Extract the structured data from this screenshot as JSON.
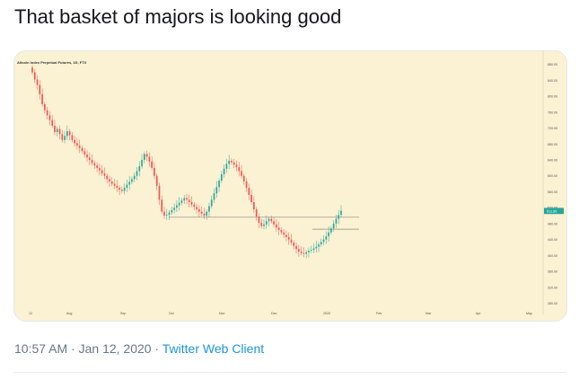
{
  "tweet": {
    "text": "That basket of majors is looking good",
    "time": "10:57 AM",
    "separator1": " · ",
    "date": "Jan 12, 2020",
    "separator2": " · ",
    "client": "Twitter Web Client"
  },
  "chart_data": {
    "type": "candlestick",
    "title": "Altcoin Index Perpetual Futures, 1D, FTX",
    "xlabel": "",
    "ylabel": "",
    "x_ticks": [
      "12",
      "Aug",
      "Sep",
      "Oct",
      "Nov",
      "Dec",
      "2020",
      "Feb",
      "Mar",
      "Apr",
      "May"
    ],
    "y_ticks": [
      280,
      320,
      360,
      400,
      440,
      480,
      520,
      560,
      600,
      640,
      680,
      720,
      760,
      800,
      840,
      880
    ],
    "ylim": [
      270,
      895
    ],
    "last_price_label": "511.85",
    "colors": {
      "background": "#fbf1d3",
      "up": "#26a69a",
      "down": "#ef5350",
      "level_line": "#8a8a8a",
      "price_badge": "#26a69a"
    },
    "horizontal_levels": [
      {
        "price": 496,
        "x_start": "Oct 1",
        "x_end": "Jan 14"
      },
      {
        "price": 466,
        "x_start": "Nov 20",
        "x_end": "Jan 14"
      }
    ],
    "close_series": [
      860,
      842,
      828,
      805,
      780,
      765,
      752,
      740,
      726,
      710,
      718,
      705,
      690,
      700,
      712,
      702,
      690,
      682,
      676,
      670,
      662,
      654,
      646,
      640,
      632,
      626,
      620,
      614,
      606,
      600,
      592,
      586,
      580,
      575,
      570,
      565,
      562,
      570,
      578,
      585,
      592,
      600,
      612,
      624,
      640,
      655,
      648,
      636,
      620,
      600,
      575,
      540,
      510,
      500,
      502,
      508,
      514,
      520,
      526,
      532,
      538,
      544,
      540,
      534,
      528,
      522,
      516,
      510,
      505,
      500,
      510,
      524,
      540,
      556,
      572,
      588,
      604,
      618,
      630,
      638,
      634,
      628,
      622,
      612,
      600,
      586,
      570,
      552,
      534,
      516,
      498,
      482,
      474,
      478,
      486,
      492,
      486,
      478,
      470,
      464,
      458,
      452,
      446,
      440,
      432,
      424,
      416,
      410,
      406,
      404,
      408,
      412,
      414,
      418,
      422,
      428,
      434,
      440,
      448,
      458,
      468,
      480,
      492,
      502,
      511.85
    ]
  }
}
